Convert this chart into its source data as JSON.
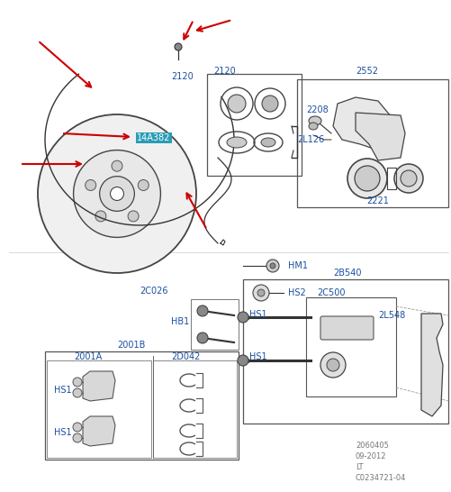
{
  "bg_color": "#ffffff",
  "label_color": "#1a4fa0",
  "highlight_bg": "#2a9db5",
  "highlight_text": "#ffffff",
  "arrow_color": "#cc0000",
  "line_color": "#333333",
  "footer_lines": [
    "2060405",
    "09-2012",
    "LT",
    "C0234721-04"
  ],
  "figsize": [
    5.02,
    5.46
  ],
  "dpi": 100
}
